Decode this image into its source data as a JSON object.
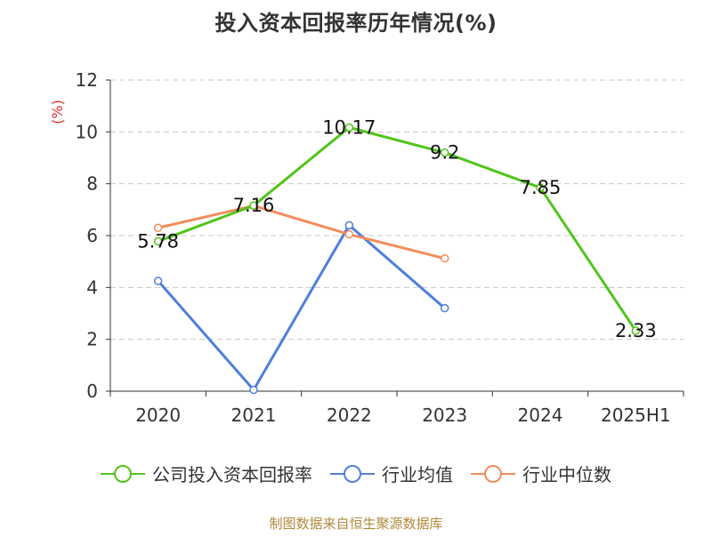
{
  "chart_data": {
    "type": "line",
    "title": "投入资本回报率历年情况(%)",
    "ylabel": "(%)",
    "categories": [
      "2020",
      "2021",
      "2022",
      "2023",
      "2024",
      "2025H1"
    ],
    "yticks": [
      "0",
      "2",
      "4",
      "6",
      "8",
      "10",
      "12"
    ],
    "ylim": [
      0,
      12
    ],
    "grid": true,
    "legend_placement": "bottom",
    "series": [
      {
        "name": "公司投入资本回报率",
        "color": "#52c41a",
        "values": [
          5.78,
          7.16,
          10.17,
          9.2,
          7.85,
          2.33
        ],
        "labels": [
          "5.78",
          "7.16",
          "10.17",
          "9.2",
          "7.85",
          "2.33"
        ]
      },
      {
        "name": "行业均值",
        "color": "#4e7fdb",
        "values": [
          4.25,
          0.05,
          6.4,
          3.2,
          null,
          null
        ]
      },
      {
        "name": "行业中位数",
        "color": "#f28c5b",
        "values": [
          6.3,
          7.15,
          6.05,
          5.12,
          null,
          null
        ]
      }
    ]
  },
  "source": "制图数据来自恒生聚源数据库"
}
